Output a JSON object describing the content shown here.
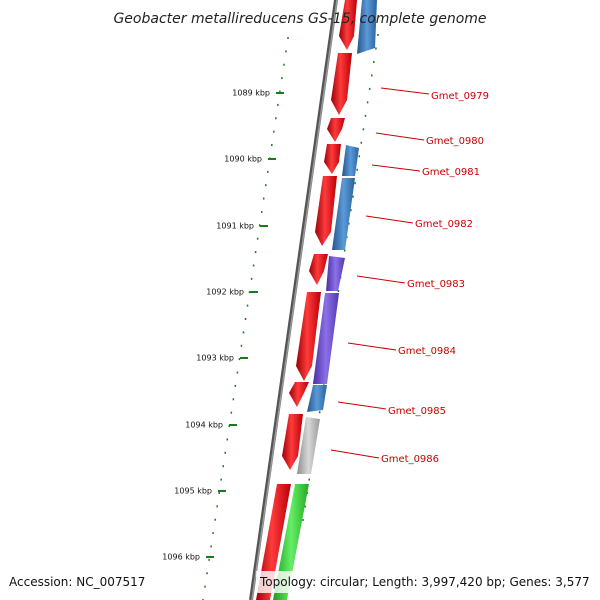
{
  "title": "Geobacter metallireducens GS-15, complete genome",
  "accession": "Accession: NC_007517",
  "topology": "Topology: circular; Length: 3,997,420 bp; Genes: 3,577",
  "kbp_labels": [
    "1089 kbp",
    "1090 kbp",
    "1091 kbp",
    "1092 kbp",
    "1093 kbp",
    "1094 kbp",
    "1095 kbp",
    "1096 kbp"
  ],
  "genes": [
    {
      "name": "Gmet_0979",
      "color": "#3a7bbf"
    },
    {
      "name": "Gmet_0980",
      "color": "#e8000d"
    },
    {
      "name": "Gmet_0981",
      "color": "#3a7bbf"
    },
    {
      "name": "Gmet_0982",
      "color": "#3a7bbf"
    },
    {
      "name": "Gmet_0983",
      "color": "#6a4fc9"
    },
    {
      "name": "Gmet_0984",
      "color": "#6a4fc9"
    },
    {
      "name": "Gmet_0985",
      "color": "#3a7bbf"
    },
    {
      "name": "Gmet_0986",
      "color": "#b5b5b5"
    }
  ],
  "colors": {
    "forward": "#e8000d",
    "blue": "#3a7bbf",
    "purple": "#6a4fc9",
    "grey": "#b5b5b5",
    "green": "#2ecc2e",
    "backbone": "#777777",
    "tick": "#1a7a1a",
    "label": "#cc0000"
  }
}
